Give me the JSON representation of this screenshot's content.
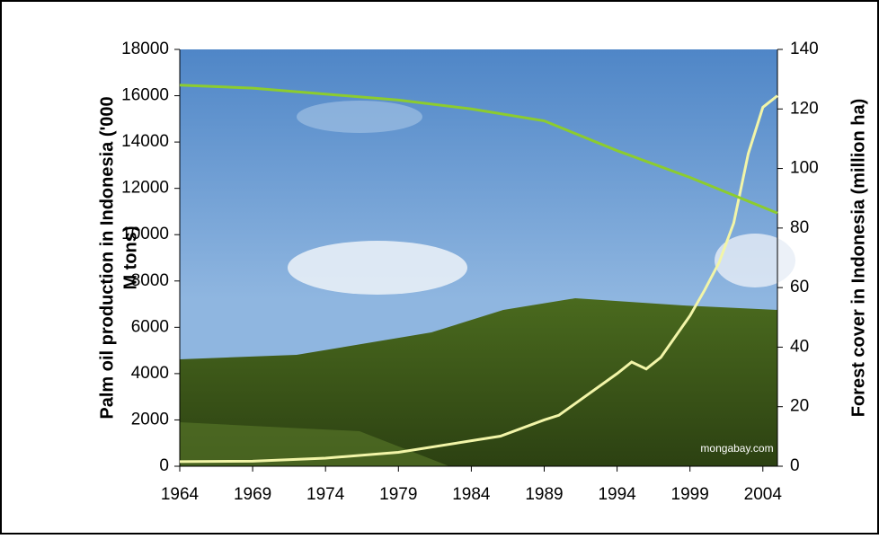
{
  "chart_data": {
    "type": "line",
    "y_label": [
      "Palm oil production in Indonesia ('000",
      "M tons)"
    ],
    "y2_label": "Forest cover in Indonesia (million ha)",
    "watermark": "mongabay.com",
    "xlim": [
      1964,
      2005
    ],
    "xticks": [
      1964,
      1969,
      1974,
      1979,
      1984,
      1989,
      1994,
      1999,
      2004
    ],
    "ylim": [
      0,
      18000
    ],
    "yticks": [
      0,
      2000,
      4000,
      6000,
      8000,
      10000,
      12000,
      14000,
      16000,
      18000
    ],
    "y2lim": [
      0,
      140
    ],
    "y2ticks": [
      0,
      20,
      40,
      60,
      80,
      100,
      120,
      140
    ],
    "series": [
      {
        "color": "#f2f5a8",
        "x": [
          1964,
          1969,
          1974,
          1979,
          1984,
          1986,
          1989,
          1990,
          1994,
          1995,
          1996,
          1997,
          1999,
          2000,
          2001,
          2002,
          2003,
          2004,
          2005
        ],
        "values": [
          200,
          220,
          350,
          600,
          1100,
          1300,
          2000,
          2200,
          4000,
          4500,
          4200,
          4700,
          6500,
          7600,
          8800,
          10500,
          13500,
          15500,
          16000
        ]
      },
      {
        "color": "#8ccc2e",
        "axis": "y2",
        "x": [
          1964,
          1969,
          1974,
          1979,
          1984,
          1989,
          1994,
          1999,
          2004,
          2005
        ],
        "values": [
          128,
          127,
          125,
          123,
          120,
          116,
          106,
          97,
          87,
          85
        ]
      }
    ]
  }
}
